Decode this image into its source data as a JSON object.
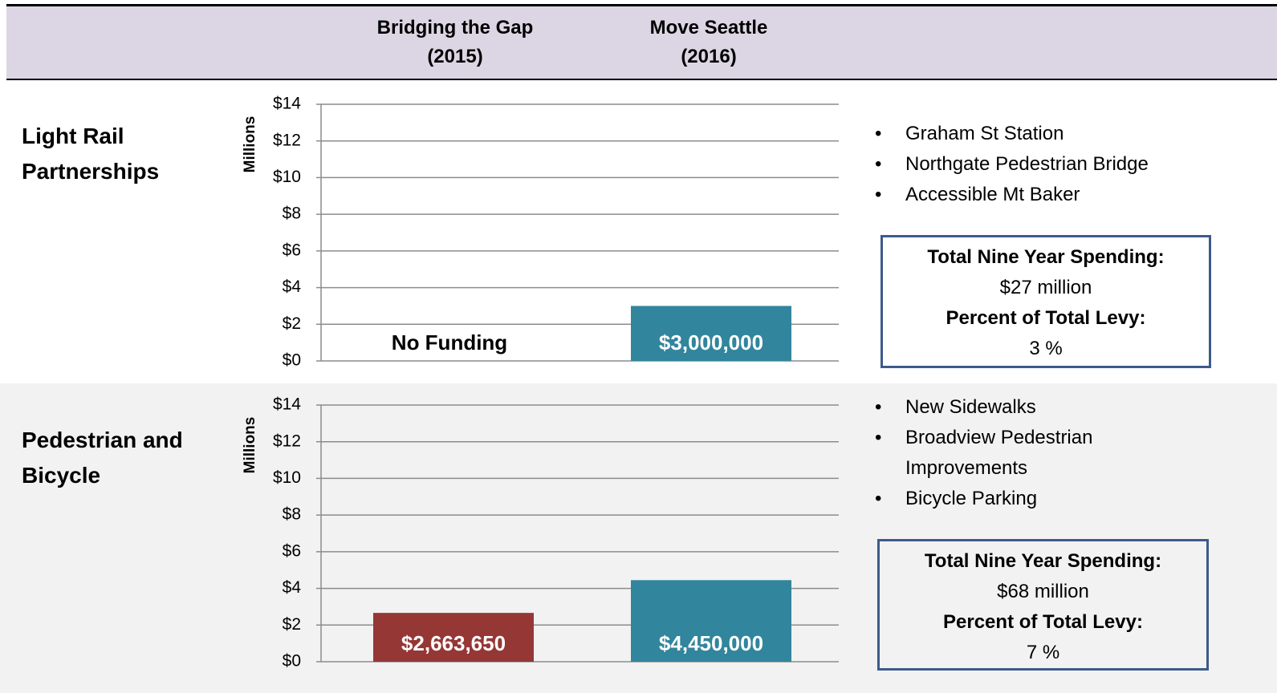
{
  "header": {
    "columns": [
      [
        "Bridging the Gap",
        "(2015)"
      ],
      [
        "Move Seattle",
        "(2016)"
      ]
    ]
  },
  "chart_data": [
    {
      "type": "bar",
      "title": "Light Rail Partnerships",
      "ylabel": "Millions",
      "values": [
        null,
        3
      ],
      "value_labels": [
        "No Funding",
        "$3,000,000"
      ],
      "colors": [
        "#953735",
        "#31859c"
      ],
      "ylim": [
        0,
        14
      ],
      "yticks": [
        {
          "value": 0,
          "label": "$0"
        },
        {
          "value": 2,
          "label": "$2"
        },
        {
          "value": 4,
          "label": "$4"
        },
        {
          "value": 6,
          "label": "$6"
        },
        {
          "value": 8,
          "label": "$8"
        },
        {
          "value": 10,
          "label": "$10"
        },
        {
          "value": 12,
          "label": "$12"
        },
        {
          "value": 14,
          "label": "$14"
        }
      ],
      "grid": true,
      "bullets": [
        "Graham St Station",
        "Northgate Pedestrian Bridge",
        "Accessible Mt Baker"
      ],
      "summary": {
        "spending_label": "Total Nine Year Spending:",
        "spending": "$27 million",
        "percent_label": "Percent of Total Levy:",
        "percent": "3 %"
      }
    },
    {
      "type": "bar",
      "title": "Pedestrian and Bicycle",
      "ylabel": "Millions",
      "values": [
        2.66365,
        4.45
      ],
      "value_labels": [
        "$2,663,650",
        "$4,450,000"
      ],
      "colors": [
        "#953735",
        "#31859c"
      ],
      "ylim": [
        0,
        14
      ],
      "yticks": [
        {
          "value": 0,
          "label": "$0"
        },
        {
          "value": 2,
          "label": "$2"
        },
        {
          "value": 4,
          "label": "$4"
        },
        {
          "value": 6,
          "label": "$6"
        },
        {
          "value": 8,
          "label": "$8"
        },
        {
          "value": 10,
          "label": "$10"
        },
        {
          "value": 12,
          "label": "$12"
        },
        {
          "value": 14,
          "label": "$14"
        }
      ],
      "grid": true,
      "bullets": [
        "New Sidewalks",
        "Broadview Pedestrian Improvements",
        "Bicycle Parking"
      ],
      "summary": {
        "spending_label": "Total Nine Year Spending:",
        "spending": "$68 million",
        "percent_label": "Percent of Total Levy:",
        "percent": "7 %"
      }
    }
  ]
}
